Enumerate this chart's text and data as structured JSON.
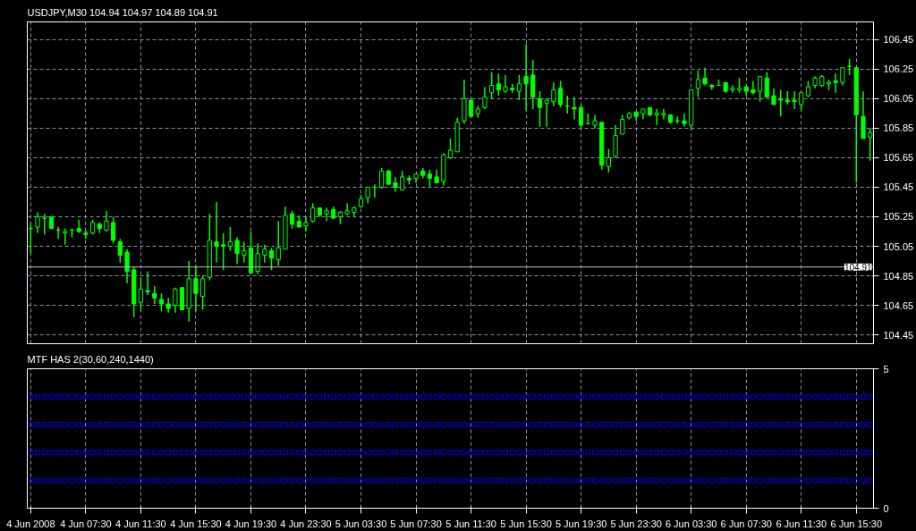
{
  "chart_data": [
    {
      "type": "candlestick",
      "title": "USDJPY,M30  104.94 104.97 104.89 104.91",
      "color": "#00ff00",
      "categories": [
        null,
        null,
        null,
        null,
        null,
        null,
        null,
        null,
        null,
        null,
        null,
        null,
        null,
        null,
        null,
        null,
        null,
        null,
        null,
        null,
        null,
        null,
        null,
        null,
        null,
        null,
        null,
        null,
        null,
        null,
        null,
        null,
        null,
        null,
        null,
        null,
        null,
        null,
        null,
        null,
        null,
        null,
        null,
        null,
        null,
        null,
        null,
        null,
        null,
        null,
        null,
        null,
        null,
        null,
        null,
        null,
        null,
        null,
        null,
        null,
        null,
        null,
        null,
        null,
        null,
        null,
        null,
        null,
        null,
        null,
        null,
        null,
        null,
        null,
        null,
        null,
        null,
        null,
        null,
        null,
        null,
        null,
        null,
        null,
        null,
        null,
        null,
        null,
        null,
        null,
        null,
        null,
        null,
        null,
        null,
        null,
        null,
        null,
        null,
        null,
        null,
        null,
        null,
        null,
        null,
        null,
        null,
        null,
        null,
        null,
        null,
        null,
        null,
        null,
        null,
        null,
        null,
        null,
        null,
        null,
        null,
        null,
        null
      ],
      "ohlc": [
        [
          105.17,
          105.21,
          105.0,
          105.17
        ],
        [
          105.18,
          105.28,
          105.14,
          105.25
        ],
        [
          105.24,
          105.27,
          105.13,
          105.24
        ],
        [
          105.25,
          105.25,
          105.17,
          105.17
        ],
        [
          105.16,
          105.18,
          105.1,
          105.16
        ],
        [
          105.14,
          105.17,
          105.06,
          105.15
        ],
        [
          105.16,
          105.17,
          105.11,
          105.16
        ],
        [
          105.17,
          105.23,
          105.14,
          105.15
        ],
        [
          105.14,
          105.16,
          105.1,
          105.13
        ],
        [
          105.14,
          105.23,
          105.13,
          105.21
        ],
        [
          105.2,
          105.21,
          105.14,
          105.17
        ],
        [
          105.16,
          105.29,
          105.15,
          105.22
        ],
        [
          105.21,
          105.25,
          105.07,
          105.09
        ],
        [
          105.08,
          105.1,
          104.94,
          104.99
        ],
        [
          105.01,
          105.03,
          104.8,
          104.88
        ],
        [
          104.89,
          104.91,
          104.57,
          104.66
        ],
        [
          104.67,
          104.84,
          104.61,
          104.76
        ],
        [
          104.75,
          104.88,
          104.72,
          104.74
        ],
        [
          104.73,
          104.78,
          104.66,
          104.7
        ],
        [
          104.69,
          104.73,
          104.61,
          104.66
        ],
        [
          104.66,
          104.7,
          104.6,
          104.63
        ],
        [
          104.65,
          104.77,
          104.6,
          104.76
        ],
        [
          104.77,
          104.77,
          104.62,
          104.62
        ],
        [
          104.63,
          104.95,
          104.54,
          104.83
        ],
        [
          104.83,
          104.92,
          104.61,
          104.73
        ],
        [
          104.71,
          104.85,
          104.62,
          104.83
        ],
        [
          104.84,
          105.27,
          104.82,
          105.09
        ],
        [
          105.08,
          105.35,
          104.94,
          105.05
        ],
        [
          105.06,
          105.14,
          104.89,
          105.05
        ],
        [
          105.05,
          105.18,
          105.02,
          105.08
        ],
        [
          105.09,
          105.11,
          104.93,
          105.0
        ],
        [
          104.99,
          105.08,
          104.94,
          105.02
        ],
        [
          105.04,
          105.15,
          104.86,
          104.87
        ],
        [
          104.88,
          105.07,
          104.86,
          105.0
        ],
        [
          104.99,
          105.06,
          104.94,
          105.03
        ],
        [
          105.02,
          105.04,
          104.89,
          104.97
        ],
        [
          104.96,
          105.22,
          104.92,
          105.04
        ],
        [
          105.03,
          105.32,
          105.03,
          105.26
        ],
        [
          105.27,
          105.29,
          105.17,
          105.2
        ],
        [
          105.22,
          105.26,
          105.18,
          105.18
        ],
        [
          105.19,
          105.25,
          105.15,
          105.21
        ],
        [
          105.22,
          105.34,
          105.21,
          105.31
        ],
        [
          105.31,
          105.31,
          105.25,
          105.26
        ],
        [
          105.27,
          105.31,
          105.22,
          105.29
        ],
        [
          105.3,
          105.32,
          105.24,
          105.24
        ],
        [
          105.25,
          105.29,
          105.2,
          105.28
        ],
        [
          105.27,
          105.34,
          105.26,
          105.29
        ],
        [
          105.28,
          105.32,
          105.25,
          105.31
        ],
        [
          105.32,
          105.4,
          105.31,
          105.37
        ],
        [
          105.38,
          105.45,
          105.34,
          105.45
        ],
        [
          105.45,
          105.47,
          105.38,
          105.45
        ],
        [
          105.45,
          105.58,
          105.44,
          105.56
        ],
        [
          105.56,
          105.57,
          105.47,
          105.47
        ],
        [
          105.48,
          105.52,
          105.42,
          105.45
        ],
        [
          105.43,
          105.56,
          105.43,
          105.52
        ],
        [
          105.51,
          105.53,
          105.47,
          105.5
        ],
        [
          105.51,
          105.54,
          105.48,
          105.54
        ],
        [
          105.56,
          105.58,
          105.51,
          105.53
        ],
        [
          105.54,
          105.57,
          105.45,
          105.51
        ],
        [
          105.52,
          105.57,
          105.48,
          105.48
        ],
        [
          105.49,
          105.68,
          105.46,
          105.67
        ],
        [
          105.65,
          105.78,
          105.64,
          105.7
        ],
        [
          105.69,
          105.92,
          105.69,
          105.89
        ],
        [
          105.9,
          106.18,
          105.88,
          106.05
        ],
        [
          106.04,
          106.05,
          105.93,
          105.93
        ],
        [
          105.95,
          106.0,
          105.92,
          105.98
        ],
        [
          105.99,
          106.13,
          105.98,
          106.06
        ],
        [
          106.09,
          106.23,
          106.05,
          106.14
        ],
        [
          106.15,
          106.22,
          106.07,
          106.11
        ],
        [
          106.1,
          106.21,
          106.09,
          106.13
        ],
        [
          106.12,
          106.15,
          106.09,
          106.11
        ],
        [
          106.1,
          106.21,
          106.04,
          106.15
        ],
        [
          106.2,
          106.42,
          105.97,
          106.15
        ],
        [
          106.21,
          106.31,
          105.98,
          106.06
        ],
        [
          106.05,
          106.1,
          105.86,
          105.99
        ],
        [
          106.02,
          106.05,
          105.86,
          106.04
        ],
        [
          106.03,
          106.16,
          106.0,
          106.11
        ],
        [
          106.12,
          106.17,
          105.99,
          106.01
        ],
        [
          106.0,
          106.07,
          105.95,
          106.0
        ],
        [
          105.99,
          106.06,
          105.91,
          105.98
        ],
        [
          105.99,
          106.01,
          105.85,
          105.87
        ],
        [
          105.88,
          105.95,
          105.88,
          105.88
        ],
        [
          105.87,
          105.94,
          105.85,
          105.9
        ],
        [
          105.89,
          105.89,
          105.57,
          105.6
        ],
        [
          105.59,
          105.71,
          105.55,
          105.65
        ],
        [
          105.66,
          105.87,
          105.65,
          105.8
        ],
        [
          105.81,
          105.94,
          105.81,
          105.91
        ],
        [
          105.92,
          105.96,
          105.91,
          105.95
        ],
        [
          105.96,
          105.96,
          105.9,
          105.93
        ],
        [
          105.95,
          105.98,
          105.91,
          105.98
        ],
        [
          105.99,
          105.99,
          105.93,
          105.94
        ],
        [
          105.94,
          105.98,
          105.87,
          105.95
        ],
        [
          105.94,
          105.98,
          105.91,
          105.95
        ],
        [
          105.94,
          105.94,
          105.88,
          105.89
        ],
        [
          105.9,
          105.93,
          105.88,
          105.9
        ],
        [
          105.9,
          105.95,
          105.86,
          105.88
        ],
        [
          105.87,
          106.11,
          105.84,
          106.11
        ],
        [
          106.12,
          106.24,
          106.06,
          106.18
        ],
        [
          106.19,
          106.26,
          106.14,
          106.15
        ],
        [
          106.14,
          106.15,
          106.11,
          106.13
        ],
        [
          106.14,
          106.18,
          106.14,
          106.14
        ],
        [
          106.16,
          106.16,
          106.09,
          106.1
        ],
        [
          106.11,
          106.14,
          106.09,
          106.12
        ],
        [
          106.11,
          106.19,
          106.09,
          106.12
        ],
        [
          106.13,
          106.14,
          106.07,
          106.1
        ],
        [
          106.11,
          106.17,
          106.08,
          106.09
        ],
        [
          106.1,
          106.2,
          106.03,
          106.2
        ],
        [
          106.19,
          106.23,
          106.06,
          106.06
        ],
        [
          106.07,
          106.12,
          106.01,
          106.01
        ],
        [
          106.05,
          106.11,
          105.93,
          106.04
        ],
        [
          106.04,
          106.1,
          106.01,
          106.03
        ],
        [
          106.04,
          106.1,
          105.98,
          106.03
        ],
        [
          106.01,
          106.09,
          105.97,
          106.09
        ],
        [
          106.07,
          106.17,
          106.06,
          106.13
        ],
        [
          106.14,
          106.2,
          106.12,
          106.19
        ],
        [
          106.14,
          106.21,
          106.13,
          106.2
        ],
        [
          106.15,
          106.18,
          106.11,
          106.16
        ],
        [
          106.17,
          106.22,
          106.09,
          106.16
        ],
        [
          106.16,
          106.26,
          106.14,
          106.26
        ],
        [
          106.27,
          106.32,
          106.21,
          106.27
        ],
        [
          106.26,
          106.26,
          105.48,
          105.94
        ],
        [
          105.93,
          106.1,
          105.78,
          105.78
        ],
        [
          105.79,
          105.85,
          105.63,
          105.82
        ]
      ],
      "ylim": [
        104.39,
        106.57
      ],
      "yticks": [
        104.45,
        104.65,
        104.85,
        105.05,
        105.25,
        105.45,
        105.65,
        105.85,
        106.05,
        106.25,
        106.45
      ],
      "grid": true,
      "tick_labels": "y",
      "ref_lines": [
        {
          "axis": "y",
          "value": 104.91,
          "label": "104.91",
          "color": "#c0c0c0"
        }
      ]
    },
    {
      "type": "scatter",
      "title": "MTF HAS 2(30,60,240,1440)",
      "marker": "square",
      "categories": [
        "4 Jun 2008",
        null,
        null,
        null,
        null,
        null,
        null,
        null,
        "4 Jun 07:30",
        null,
        null,
        null,
        null,
        null,
        null,
        null,
        "4 Jun 11:30",
        null,
        null,
        null,
        null,
        null,
        null,
        null,
        "4 Jun 15:30",
        null,
        null,
        null,
        null,
        null,
        null,
        null,
        "4 Jun 19:30",
        null,
        null,
        null,
        null,
        null,
        null,
        null,
        "4 Jun 23:30",
        null,
        null,
        null,
        null,
        null,
        null,
        null,
        "5 Jun 03:30",
        null,
        null,
        null,
        null,
        null,
        null,
        null,
        "5 Jun 07:30",
        null,
        null,
        null,
        null,
        null,
        null,
        null,
        "5 Jun 11:30",
        null,
        null,
        null,
        null,
        null,
        null,
        null,
        "5 Jun 15:30",
        null,
        null,
        null,
        null,
        null,
        null,
        null,
        "5 Jun 19:30",
        null,
        null,
        null,
        null,
        null,
        null,
        null,
        "5 Jun 23:30",
        null,
        null,
        null,
        null,
        null,
        null,
        null,
        "6 Jun 03:30",
        null,
        null,
        null,
        null,
        null,
        null,
        null,
        "6 Jun 07:30",
        null,
        null,
        null,
        null,
        null,
        null,
        null,
        "6 Jun 11:30",
        null,
        null,
        null,
        null,
        null,
        null,
        null,
        "6 Jun 15:30",
        null,
        null
      ],
      "series": [
        {
          "color": "#0000ff",
          "values": [
            4,
            4,
            4,
            4,
            4,
            4,
            4,
            4,
            4,
            4,
            4,
            4,
            4,
            4,
            4,
            4,
            4,
            4,
            4,
            4,
            4,
            4,
            4,
            4,
            4,
            4,
            4,
            4,
            4,
            4,
            4,
            4,
            4,
            4,
            4,
            4,
            4,
            4,
            4,
            4,
            4,
            4,
            4,
            4,
            4,
            4,
            4,
            4,
            4,
            4,
            4,
            4,
            4,
            4,
            4,
            4,
            4,
            4,
            4,
            4,
            4,
            4,
            4,
            4,
            4,
            4,
            4,
            4,
            4,
            4,
            4,
            4,
            4,
            4,
            4,
            4,
            4,
            4,
            4,
            4,
            4,
            4,
            4,
            4,
            4,
            4,
            4,
            4,
            4,
            4,
            4,
            4,
            4,
            4,
            4,
            4,
            4,
            4,
            4,
            4,
            4,
            4,
            4,
            4,
            4,
            4,
            4,
            4,
            4,
            4,
            4,
            4,
            4,
            4,
            4,
            4,
            4,
            4,
            4,
            4,
            4,
            4,
            4
          ]
        },
        {
          "color": "#0000ff",
          "values": [
            3,
            3,
            3,
            3,
            3,
            3,
            3,
            3,
            3,
            3,
            3,
            3,
            3,
            3,
            3,
            3,
            3,
            3,
            3,
            3,
            3,
            3,
            3,
            3,
            3,
            3,
            3,
            3,
            3,
            3,
            3,
            3,
            3,
            3,
            3,
            3,
            3,
            3,
            3,
            3,
            3,
            3,
            3,
            3,
            3,
            3,
            3,
            3,
            3,
            3,
            3,
            3,
            3,
            3,
            3,
            3,
            3,
            3,
            3,
            3,
            3,
            3,
            3,
            3,
            3,
            3,
            3,
            3,
            3,
            3,
            3,
            3,
            3,
            3,
            3,
            3,
            3,
            3,
            3,
            3,
            3,
            3,
            3,
            3,
            3,
            3,
            3,
            3,
            3,
            3,
            3,
            3,
            3,
            3,
            3,
            3,
            3,
            3,
            3,
            3,
            3,
            3,
            3,
            3,
            3,
            3,
            3,
            3,
            3,
            3,
            3,
            3,
            3,
            3,
            3,
            3,
            3,
            3,
            3,
            3,
            3,
            3,
            3
          ]
        },
        {
          "color": "#0000ff",
          "values": [
            2,
            2,
            2,
            2,
            2,
            2,
            2,
            2,
            2,
            2,
            2,
            2,
            2,
            2,
            2,
            2,
            2,
            2,
            2,
            2,
            2,
            2,
            2,
            2,
            2,
            2,
            2,
            2,
            2,
            2,
            2,
            2,
            2,
            2,
            2,
            2,
            2,
            2,
            2,
            2,
            2,
            2,
            2,
            2,
            2,
            2,
            2,
            2,
            2,
            2,
            2,
            2,
            2,
            2,
            2,
            2,
            2,
            2,
            2,
            2,
            2,
            2,
            2,
            2,
            2,
            2,
            2,
            2,
            2,
            2,
            2,
            2,
            2,
            2,
            2,
            2,
            2,
            2,
            2,
            2,
            2,
            2,
            2,
            2,
            2,
            2,
            2,
            2,
            2,
            2,
            2,
            2,
            2,
            2,
            2,
            2,
            2,
            2,
            2,
            2,
            2,
            2,
            2,
            2,
            2,
            2,
            2,
            2,
            2,
            2,
            2,
            2,
            2,
            2,
            2,
            2,
            2,
            2,
            2,
            2,
            2,
            2,
            2
          ]
        },
        {
          "color": "#0000ff",
          "values": [
            1,
            1,
            1,
            1,
            1,
            1,
            1,
            1,
            1,
            1,
            1,
            1,
            1,
            1,
            1,
            1,
            1,
            1,
            1,
            1,
            1,
            1,
            1,
            1,
            1,
            1,
            1,
            1,
            1,
            1,
            1,
            1,
            1,
            1,
            1,
            1,
            1,
            1,
            1,
            1,
            1,
            1,
            1,
            1,
            1,
            1,
            1,
            1,
            1,
            1,
            1,
            1,
            1,
            1,
            1,
            1,
            1,
            1,
            1,
            1,
            1,
            1,
            1,
            1,
            1,
            1,
            1,
            1,
            1,
            1,
            1,
            1,
            1,
            1,
            1,
            1,
            1,
            1,
            1,
            1,
            1,
            1,
            1,
            1,
            1,
            1,
            1,
            1,
            1,
            1,
            1,
            1,
            1,
            1,
            1,
            1,
            1,
            1,
            1,
            1,
            1,
            1,
            1,
            1,
            1,
            1,
            1,
            1,
            1,
            1,
            1,
            1,
            1,
            1,
            1,
            1,
            1,
            1,
            1,
            1,
            1,
            1,
            1
          ]
        }
      ],
      "ylim": [
        0,
        5
      ],
      "yticks": [
        0,
        5
      ],
      "grid": "x"
    }
  ]
}
